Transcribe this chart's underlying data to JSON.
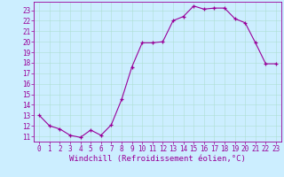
{
  "x": [
    0,
    1,
    2,
    3,
    4,
    5,
    6,
    7,
    8,
    9,
    10,
    11,
    12,
    13,
    14,
    15,
    16,
    17,
    18,
    19,
    20,
    21,
    22,
    23
  ],
  "y": [
    13,
    12,
    11.7,
    11.1,
    10.9,
    11.6,
    11.1,
    12.1,
    14.5,
    17.6,
    19.9,
    19.9,
    20.0,
    22.0,
    22.4,
    23.4,
    23.1,
    23.2,
    23.2,
    22.2,
    21.8,
    19.9,
    17.9,
    17.9
  ],
  "line_color": "#990099",
  "marker": "+",
  "bg_color": "#cceeff",
  "grid_color": "#aaddcc",
  "xlabel": "Windchill (Refroidissement éolien,°C)",
  "ylabel_ticks": [
    11,
    12,
    13,
    14,
    15,
    16,
    17,
    18,
    19,
    20,
    21,
    22,
    23
  ],
  "ylim": [
    10.5,
    23.8
  ],
  "xlim": [
    -0.5,
    23.5
  ],
  "tick_color": "#990099",
  "label_color": "#990099",
  "tick_fontsize": 5.5,
  "xlabel_fontsize": 6.5
}
